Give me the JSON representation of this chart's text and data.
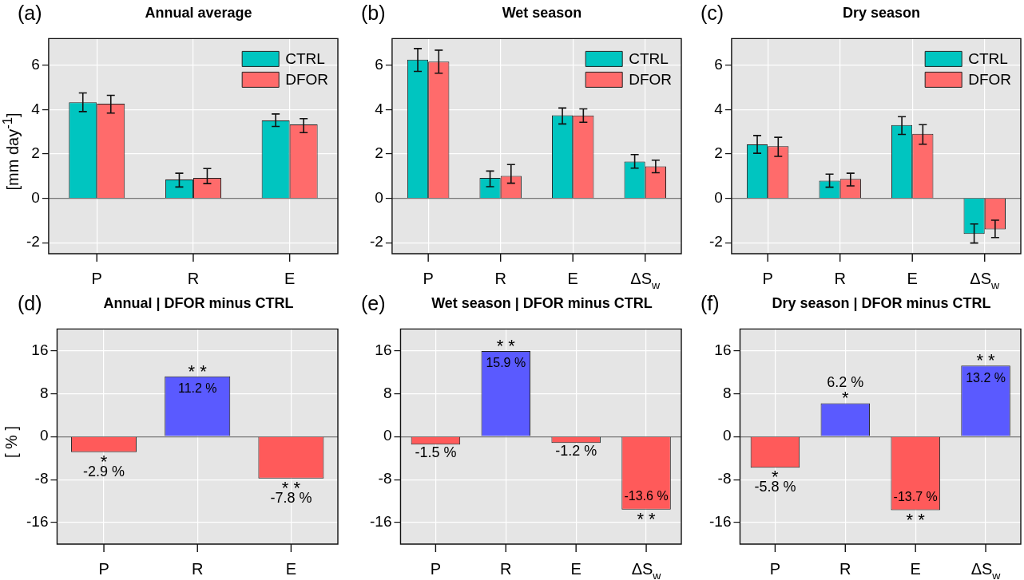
{
  "chart_data": [
    {
      "type": "bar",
      "title": "Annual average",
      "ylabel": "[mm day$^{-1}$]",
      "annotations": [
        "(a)"
      ],
      "categories": [
        "P",
        "R",
        "E"
      ],
      "series": [
        {
          "name": "CTRL",
          "color": "#00c5c0",
          "values": [
            4.33,
            0.85,
            3.51
          ],
          "errors": [
            [
              3.91,
              4.75
            ],
            [
              0.51,
              1.13
            ],
            [
              3.24,
              3.8
            ]
          ]
        },
        {
          "name": "DFOR",
          "color": "#ff6b6b",
          "values": [
            4.26,
            0.92,
            3.33
          ],
          "errors": [
            [
              3.84,
              4.64
            ],
            [
              0.66,
              1.34
            ],
            [
              2.96,
              3.59
            ]
          ]
        }
      ],
      "ylim": [
        -2.5,
        7.2
      ],
      "yticks": [
        -2,
        0,
        2,
        4,
        6
      ],
      "grid": true,
      "legend": "top right"
    },
    {
      "type": "bar",
      "title": "Wet season",
      "annotations": [
        "(b)"
      ],
      "categories": [
        "P",
        "R",
        "E",
        "ΔS$_{w}$"
      ],
      "series": [
        {
          "name": "CTRL",
          "color": "#00c5c0",
          "values": [
            6.25,
            0.92,
            3.74,
            1.66
          ],
          "errors": [
            [
              5.72,
              6.75
            ],
            [
              0.52,
              1.23
            ],
            [
              3.35,
              4.07
            ],
            [
              1.36,
              1.97
            ]
          ]
        },
        {
          "name": "DFOR",
          "color": "#ff6b6b",
          "values": [
            6.16,
            1.01,
            3.73,
            1.44
          ],
          "errors": [
            [
              5.64,
              6.68
            ],
            [
              0.68,
              1.52
            ],
            [
              3.43,
              4.03
            ],
            [
              1.15,
              1.72
            ]
          ]
        }
      ],
      "ylim": [
        -2.5,
        7.2
      ],
      "yticks": [
        -2,
        0,
        2,
        4,
        6
      ],
      "grid": true,
      "legend": "top right"
    },
    {
      "type": "bar",
      "title": "Dry season",
      "annotations": [
        "(c)"
      ],
      "categories": [
        "P",
        "R",
        "E",
        "ΔS$_{w}$"
      ],
      "series": [
        {
          "name": "CTRL",
          "color": "#00c5c0",
          "values": [
            2.43,
            0.79,
            3.3,
            -1.61
          ],
          "errors": [
            [
              2.03,
              2.83
            ],
            [
              0.5,
              1.09
            ],
            [
              2.88,
              3.68
            ],
            [
              -2.02,
              -1.16
            ]
          ]
        },
        {
          "name": "DFOR",
          "color": "#ff6b6b",
          "values": [
            2.35,
            0.87,
            2.91,
            -1.4
          ],
          "errors": [
            [
              1.89,
              2.75
            ],
            [
              0.56,
              1.13
            ],
            [
              2.44,
              3.32
            ],
            [
              -1.77,
              -0.99
            ]
          ]
        }
      ],
      "ylim": [
        -2.5,
        7.2
      ],
      "yticks": [
        -2,
        0,
        2,
        4,
        6
      ],
      "grid": true,
      "legend": "top right"
    },
    {
      "type": "bar",
      "title": "Annual | DFOR minus CTRL",
      "ylabel": "[ % ]",
      "categories": [
        "P",
        "R",
        "E"
      ],
      "values": [
        -2.9,
        11.2,
        -7.8
      ],
      "colors": [
        "#ff5a5a",
        "#5a5aff",
        "#ff5a5a"
      ],
      "value_labels": [
        "-2.9 %",
        "11.2 %",
        "-7.8 %"
      ],
      "annotations": [
        "(d)",
        {
          "text": "*",
          "x": "P",
          "y": -2.9
        },
        {
          "text": "* *",
          "x": "R",
          "y": 11.2
        },
        {
          "text": "* *",
          "x": "E",
          "y": -7.8
        }
      ],
      "ylim": [
        -20,
        20
      ],
      "yticks": [
        -16,
        -8,
        0,
        8,
        16
      ],
      "grid": true
    },
    {
      "type": "bar",
      "title": "Wet season | DFOR minus CTRL",
      "categories": [
        "P",
        "R",
        "E",
        "ΔS$_{w}$"
      ],
      "values": [
        -1.5,
        15.9,
        -1.2,
        -13.6
      ],
      "colors": [
        "#ff5a5a",
        "#5a5aff",
        "#ff5a5a",
        "#ff5a5a"
      ],
      "value_labels": [
        "-1.5 %",
        "15.9 %",
        "-1.2 %",
        "-13.6 %"
      ],
      "annotations": [
        "(e)",
        {
          "text": "* *",
          "x": "R",
          "y": 15.9
        },
        {
          "text": "* *",
          "x": "ΔS$_{w}$",
          "y": -13.6
        }
      ],
      "ylim": [
        -20,
        20
      ],
      "yticks": [
        -16,
        -8,
        0,
        8,
        16
      ],
      "grid": true
    },
    {
      "type": "bar",
      "title": "Dry season | DFOR minus CTRL",
      "categories": [
        "P",
        "R",
        "E",
        "ΔS$_{w}$"
      ],
      "values": [
        -5.8,
        6.2,
        -13.7,
        13.2
      ],
      "colors": [
        "#ff5a5a",
        "#5a5aff",
        "#ff5a5a",
        "#5a5aff"
      ],
      "value_labels": [
        "-5.8 %",
        "6.2 %",
        "-13.7 %",
        "13.2 %"
      ],
      "annotations": [
        "(f)",
        {
          "text": "*",
          "x": "P",
          "y": -5.8
        },
        {
          "text": "*",
          "x": "R",
          "y": 6.2
        },
        {
          "text": "* *",
          "x": "E",
          "y": -13.7
        },
        {
          "text": "* *",
          "x": "ΔS$_{w}$",
          "y": 13.2
        }
      ],
      "ylim": [
        -20,
        20
      ],
      "yticks": [
        -16,
        -8,
        0,
        8,
        16
      ],
      "grid": true
    }
  ]
}
